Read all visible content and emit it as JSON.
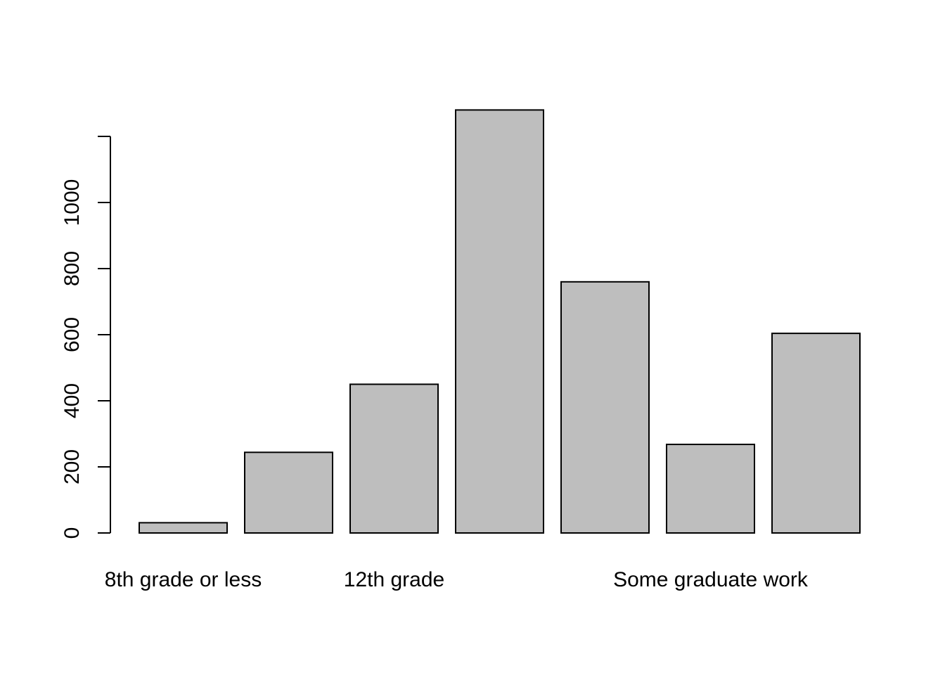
{
  "chart_data": {
    "type": "bar",
    "title": "",
    "xlabel": "",
    "ylabel": "",
    "categories": [
      "8th grade or less",
      "",
      "12th grade",
      "",
      "",
      "Some graduate work",
      ""
    ],
    "values": [
      31,
      244,
      450,
      1280,
      760,
      268,
      604
    ],
    "ylim": [
      0,
      1280
    ],
    "y_ticks": [
      "0",
      "200",
      "400",
      "600",
      "800",
      "1000"
    ],
    "grid": false,
    "legend": "none",
    "colors": {
      "bar_fill": "#bebebe",
      "bar_stroke": "#000000",
      "axis": "#000000",
      "background": "#ffffff"
    }
  }
}
